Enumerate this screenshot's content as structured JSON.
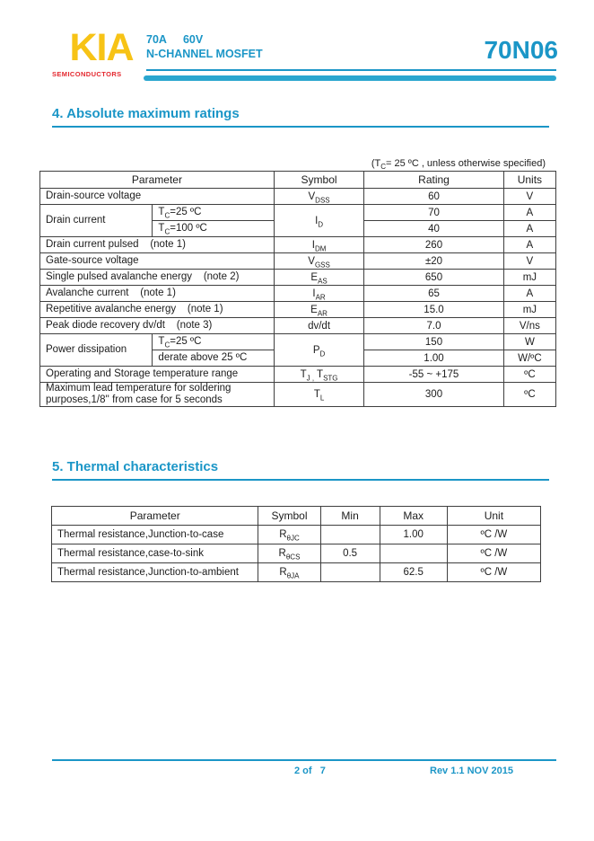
{
  "colors": {
    "teal": "#1B96C7",
    "bar": "#2AA6CF",
    "logo_yellow": "#F7C316",
    "logo_red": "#E4272E"
  },
  "header": {
    "logo_text": "KIA",
    "logo_subtext": "SEMICONDUCTORS",
    "current_rating": "70A",
    "voltage_rating": "60V",
    "device_type": "N-CHANNEL MOSFET",
    "part_number": "70N06"
  },
  "section4": {
    "title": "4. Absolute maximum ratings",
    "condition_note": "(T_{C}= 25 ºC , unless otherwise specified)",
    "table": {
      "headers": [
        "Parameter",
        "Symbol",
        "Rating",
        "Units"
      ],
      "rows": [
        {
          "parameter": "Drain-source voltage",
          "symbol": "V_{DSS}",
          "rating": "60",
          "units": "V"
        },
        {
          "parameter": "Drain current",
          "symbol": "I_{D}",
          "subrows": [
            {
              "condition": "T_{C}=25 ºC",
              "rating": "70",
              "units": "A"
            },
            {
              "condition": "T_{C}=100 ºC",
              "rating": "40",
              "units": "A"
            }
          ]
        },
        {
          "parameter": "Drain current pulsed    (note 1)",
          "symbol": "I_{DM}",
          "rating": "260",
          "units": "A"
        },
        {
          "parameter": "Gate-source voltage",
          "symbol": "V_{GSS}",
          "rating": "±20",
          "units": "V"
        },
        {
          "parameter": "Single pulsed avalanche energy    (note 2)",
          "symbol": "E_{AS}",
          "rating": "650",
          "units": "mJ"
        },
        {
          "parameter": "Avalanche current    (note 1)",
          "symbol": "I_{AR}",
          "rating": "65",
          "units": "A"
        },
        {
          "parameter": "Repetitive avalanche energy    (note 1)",
          "symbol": "E_{AR}",
          "rating": "15.0",
          "units": "mJ"
        },
        {
          "parameter": "Peak diode recovery dv/dt    (note 3)",
          "symbol": "dv/dt",
          "rating": "7.0",
          "units": "V/ns"
        },
        {
          "parameter": "Power dissipation",
          "symbol": "P_{D}",
          "subrows": [
            {
              "condition": "T_{C}=25 ºC",
              "rating": "150",
              "units": "W"
            },
            {
              "condition": "derate above 25 ºC",
              "rating": "1.00",
              "units": "W/ºC"
            }
          ]
        },
        {
          "parameter": "Operating and Storage temperature range",
          "symbol": "T_{J ,} T_{STG}",
          "rating": "-55 ~ +175",
          "units": "ºC"
        },
        {
          "parameter": "Maximum lead temperature for soldering purposes,1/8'' from case for 5 seconds",
          "symbol": "T_{L}",
          "rating": "300",
          "units": "ºC"
        }
      ]
    }
  },
  "section5": {
    "title": "5. Thermal characteristics",
    "table": {
      "headers": [
        "Parameter",
        "Symbol",
        "Min",
        "Max",
        "Unit"
      ],
      "rows": [
        {
          "parameter": "Thermal resistance,Junction-to-case",
          "symbol": "R_{θJC}",
          "min": "",
          "max": "1.00",
          "unit": "ºC /W"
        },
        {
          "parameter": "Thermal resistance,case-to-sink",
          "symbol": "R_{θCS}",
          "min": "0.5",
          "max": "",
          "unit": "ºC /W"
        },
        {
          "parameter": "Thermal resistance,Junction-to-ambient",
          "symbol": "R_{θJA}",
          "min": "",
          "max": "62.5",
          "unit": "ºC /W"
        }
      ]
    }
  },
  "footer": {
    "page_info": "2 of   7",
    "revision": "Rev 1.1 NOV 2015"
  }
}
